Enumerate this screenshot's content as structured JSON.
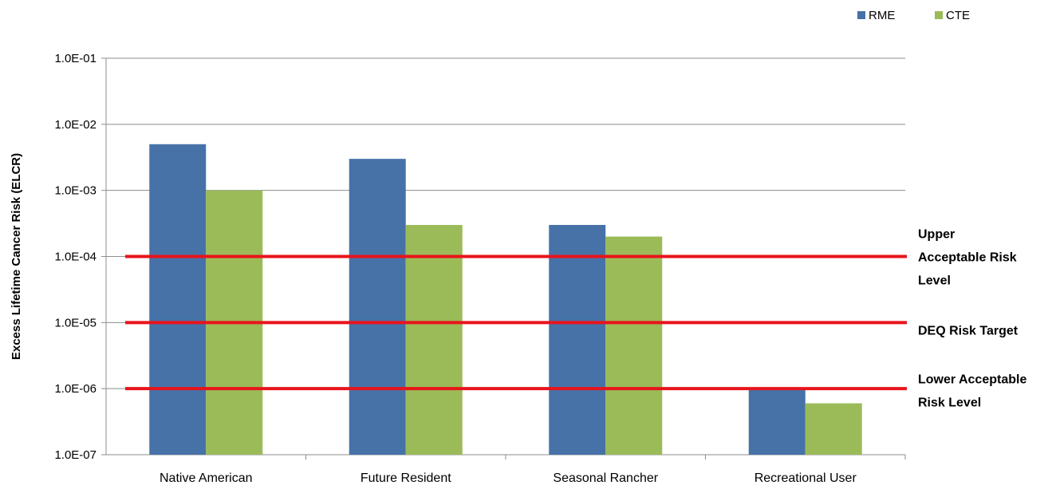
{
  "chart_data": {
    "type": "bar",
    "yscale": "log",
    "ylabel": "Excess Lifetime Cancer Risk (ELCR)",
    "xlabel": "",
    "ylim": [
      1e-07,
      0.1
    ],
    "yticks": [
      {
        "value": 0.1,
        "label": "1.0E-01"
      },
      {
        "value": 0.01,
        "label": "1.0E-02"
      },
      {
        "value": 0.001,
        "label": "1.0E-03"
      },
      {
        "value": 0.0001,
        "label": "1.0E-04"
      },
      {
        "value": 1e-05,
        "label": "1.0E-05"
      },
      {
        "value": 1e-06,
        "label": "1.0E-06"
      },
      {
        "value": 1e-07,
        "label": "1.0E-07"
      }
    ],
    "categories": [
      "Native American",
      "Future Resident",
      "Seasonal Rancher",
      "Recreational User"
    ],
    "series": [
      {
        "name": "RME",
        "color": "#4672a8",
        "values": [
          0.005,
          0.003,
          0.0003,
          1e-06
        ]
      },
      {
        "name": "CTE",
        "color": "#9bbb59",
        "values": [
          0.001,
          0.0003,
          0.0002,
          6e-07
        ]
      }
    ],
    "reference_lines": [
      {
        "value": 0.0001,
        "label_lines": [
          "Upper",
          "Acceptable Risk",
          "Level"
        ],
        "color": "#e8141b"
      },
      {
        "value": 1e-05,
        "label_lines": [
          "DEQ Risk Target"
        ],
        "color": "#e8141b"
      },
      {
        "value": 1e-06,
        "label_lines": [
          "Lower Acceptable",
          "Risk Level"
        ],
        "color": "#e8141b"
      }
    ],
    "grid": true,
    "legend_position": "top-right"
  }
}
